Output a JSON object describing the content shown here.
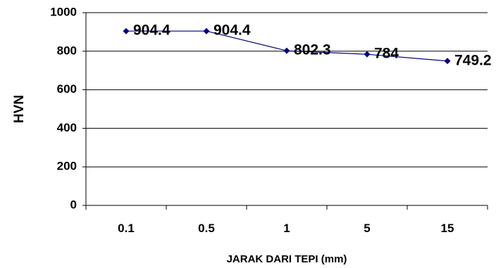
{
  "chart_data": {
    "type": "line",
    "categories": [
      "0.1",
      "0.5",
      "1",
      "5",
      "15"
    ],
    "series": [
      {
        "values": [
          904.4,
          904.4,
          802.3,
          784,
          749.2
        ],
        "labels": [
          "904.4",
          "904.4",
          "802.3",
          "784",
          "749.2"
        ],
        "color": "#000080"
      }
    ],
    "xlabel": "JARAK DARI TEPI (mm)",
    "ylabel": "HVN",
    "ylim": [
      0,
      1000
    ],
    "yticks": [
      "0",
      "200",
      "400",
      "600",
      "800",
      "1000"
    ],
    "grid": "horizontal"
  }
}
